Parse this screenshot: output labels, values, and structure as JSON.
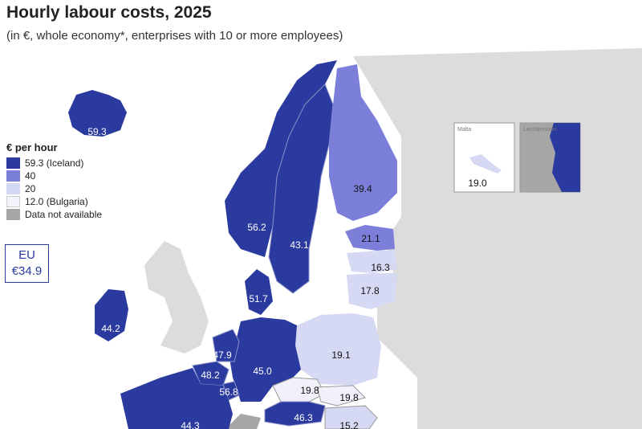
{
  "title": "Hourly labour costs, 2025",
  "subtitle": "(in €, whole economy*, enterprises with 10 or more employees)",
  "legend": {
    "title": "€ per hour",
    "items": [
      {
        "label": "59.3 (Iceland)",
        "color": "#2b3a9e"
      },
      {
        "label": "40",
        "color": "#7b7fd9"
      },
      {
        "label": "20",
        "color": "#d6d9f4"
      },
      {
        "label": "12.0 (Bulgaria)",
        "color": "#f3f4fb"
      },
      {
        "label": "Data not available",
        "color": "#a6a6a6"
      }
    ]
  },
  "eu": {
    "label": "EU",
    "value": "€34.9"
  },
  "insets": {
    "malta_label": "Malta",
    "malta_value": "19.0",
    "liechtenstein_label": "Liechtenstein"
  },
  "values": {
    "iceland": "59.3",
    "norway": "56.2",
    "sweden": "43.1",
    "finland": "39.4",
    "estonia": "21.1",
    "latvia": "16.3",
    "lithuania": "17.8",
    "denmark": "51.7",
    "ireland": "44.2",
    "netherlands": "47.9",
    "belgium": "48.2",
    "luxembourg": "56.8",
    "germany": "45.0",
    "poland": "19.1",
    "czechia": "19.8",
    "slovakia": "19.8",
    "austria": "46.3",
    "hungary": "15.2",
    "france": "44.3"
  },
  "colors": {
    "dark": "#2b3a9e",
    "mid": "#7b7fd9",
    "light": "#d6d9f4",
    "nodata": "#a6a6a6",
    "nonEU": "#d9d9d9",
    "sea": "#ffffff"
  }
}
